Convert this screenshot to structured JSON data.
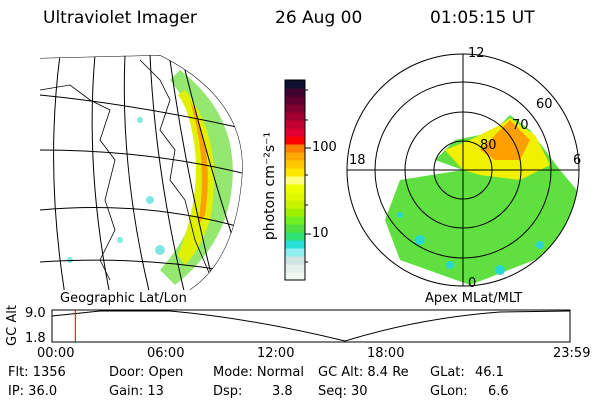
{
  "header": {
    "instrument": "Ultraviolet Imager",
    "date": "26 Aug 00",
    "time": "01:05:15 UT"
  },
  "colorbar": {
    "label": "photon cm⁻²s⁻¹",
    "ticks": [
      "100",
      "10"
    ],
    "colors": [
      "#f0f8f4",
      "#e4f0ea",
      "#d0e4e2",
      "#90eef0",
      "#28e0d8",
      "#30e070",
      "#50e040",
      "#70f020",
      "#a0f000",
      "#c8f400",
      "#e0f800",
      "#f0ff00",
      "#ffff80",
      "#ffe800",
      "#ffc800",
      "#ffa800",
      "#ff8000",
      "#ff0000",
      "#e00030",
      "#c00030",
      "#a00030",
      "#800030",
      "#600030",
      "#400030",
      "#101030"
    ]
  },
  "polar": {
    "mlt_labels": [
      "12",
      "18",
      "6",
      "0"
    ],
    "lat_labels": [
      "80",
      "70",
      "60"
    ]
  },
  "map_labels": {
    "left": "Geographic Lat/Lon",
    "right": "Apex MLat/MLT"
  },
  "altitude_plot": {
    "ylabel": "GC Alt",
    "yticks": [
      "9.0",
      "1.8"
    ],
    "xticks": [
      "00:00",
      "06:00",
      "12:00",
      "18:00",
      "23:59"
    ],
    "current_time_fraction": 0.045,
    "marker_color": "#e00000"
  },
  "info": {
    "flt": "Flt: 1356",
    "ip": "IP: 36.0",
    "door": "Door: Open",
    "gain": "Gain: 13",
    "mode": "Mode: Normal",
    "dsp_label": "Dsp:",
    "dsp_value": "3.8",
    "gcalt": "GC Alt: 8.4 Re",
    "seq": "Seq: 30",
    "glat_label": "GLat:",
    "glat_value": "46.1",
    "glon_label": "GLon:",
    "glon_value": "6.6"
  }
}
